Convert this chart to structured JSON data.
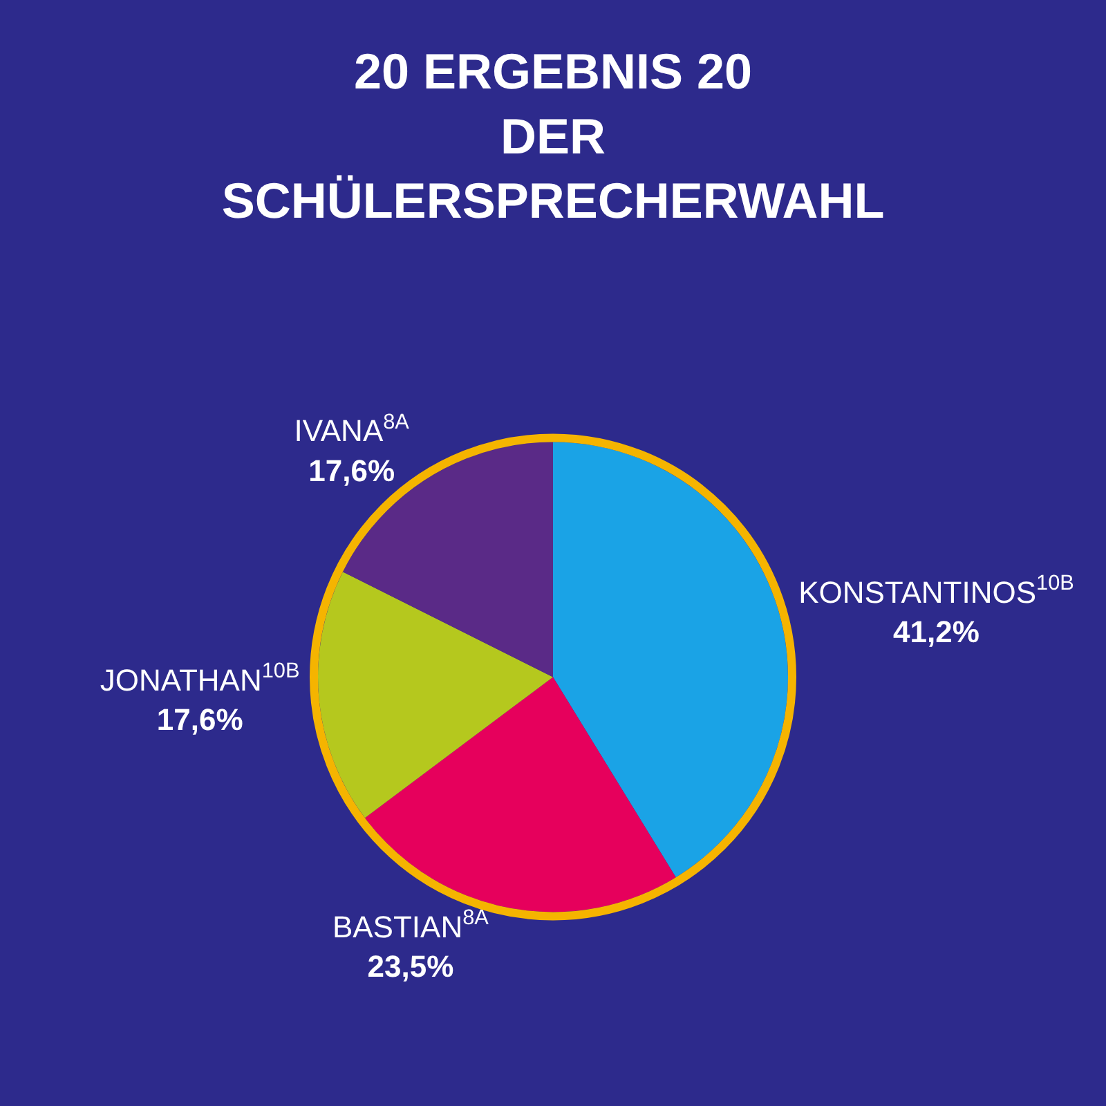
{
  "chart_data": {
    "type": "pie",
    "title": "20 ERGEBNIS 20",
    "subtitle": "DER\nSCHÜLERSPRECHERWAHL",
    "categories": [
      "KONSTANTINOS$^{10B}$",
      "BASTIAN$^{8A}$",
      "JONATHAN$^{10B}$",
      "IVANA$^{8A}$"
    ],
    "values": [
      41.2,
      23.5,
      17.6,
      17.6
    ],
    "value_labels": [
      "41,2%",
      "23,5%",
      "17,6%",
      "17,6%"
    ],
    "colors": [
      "#1aa3e6",
      "#e6005c",
      "#b5c81e",
      "#5a2a87"
    ],
    "legend": false
  }
}
